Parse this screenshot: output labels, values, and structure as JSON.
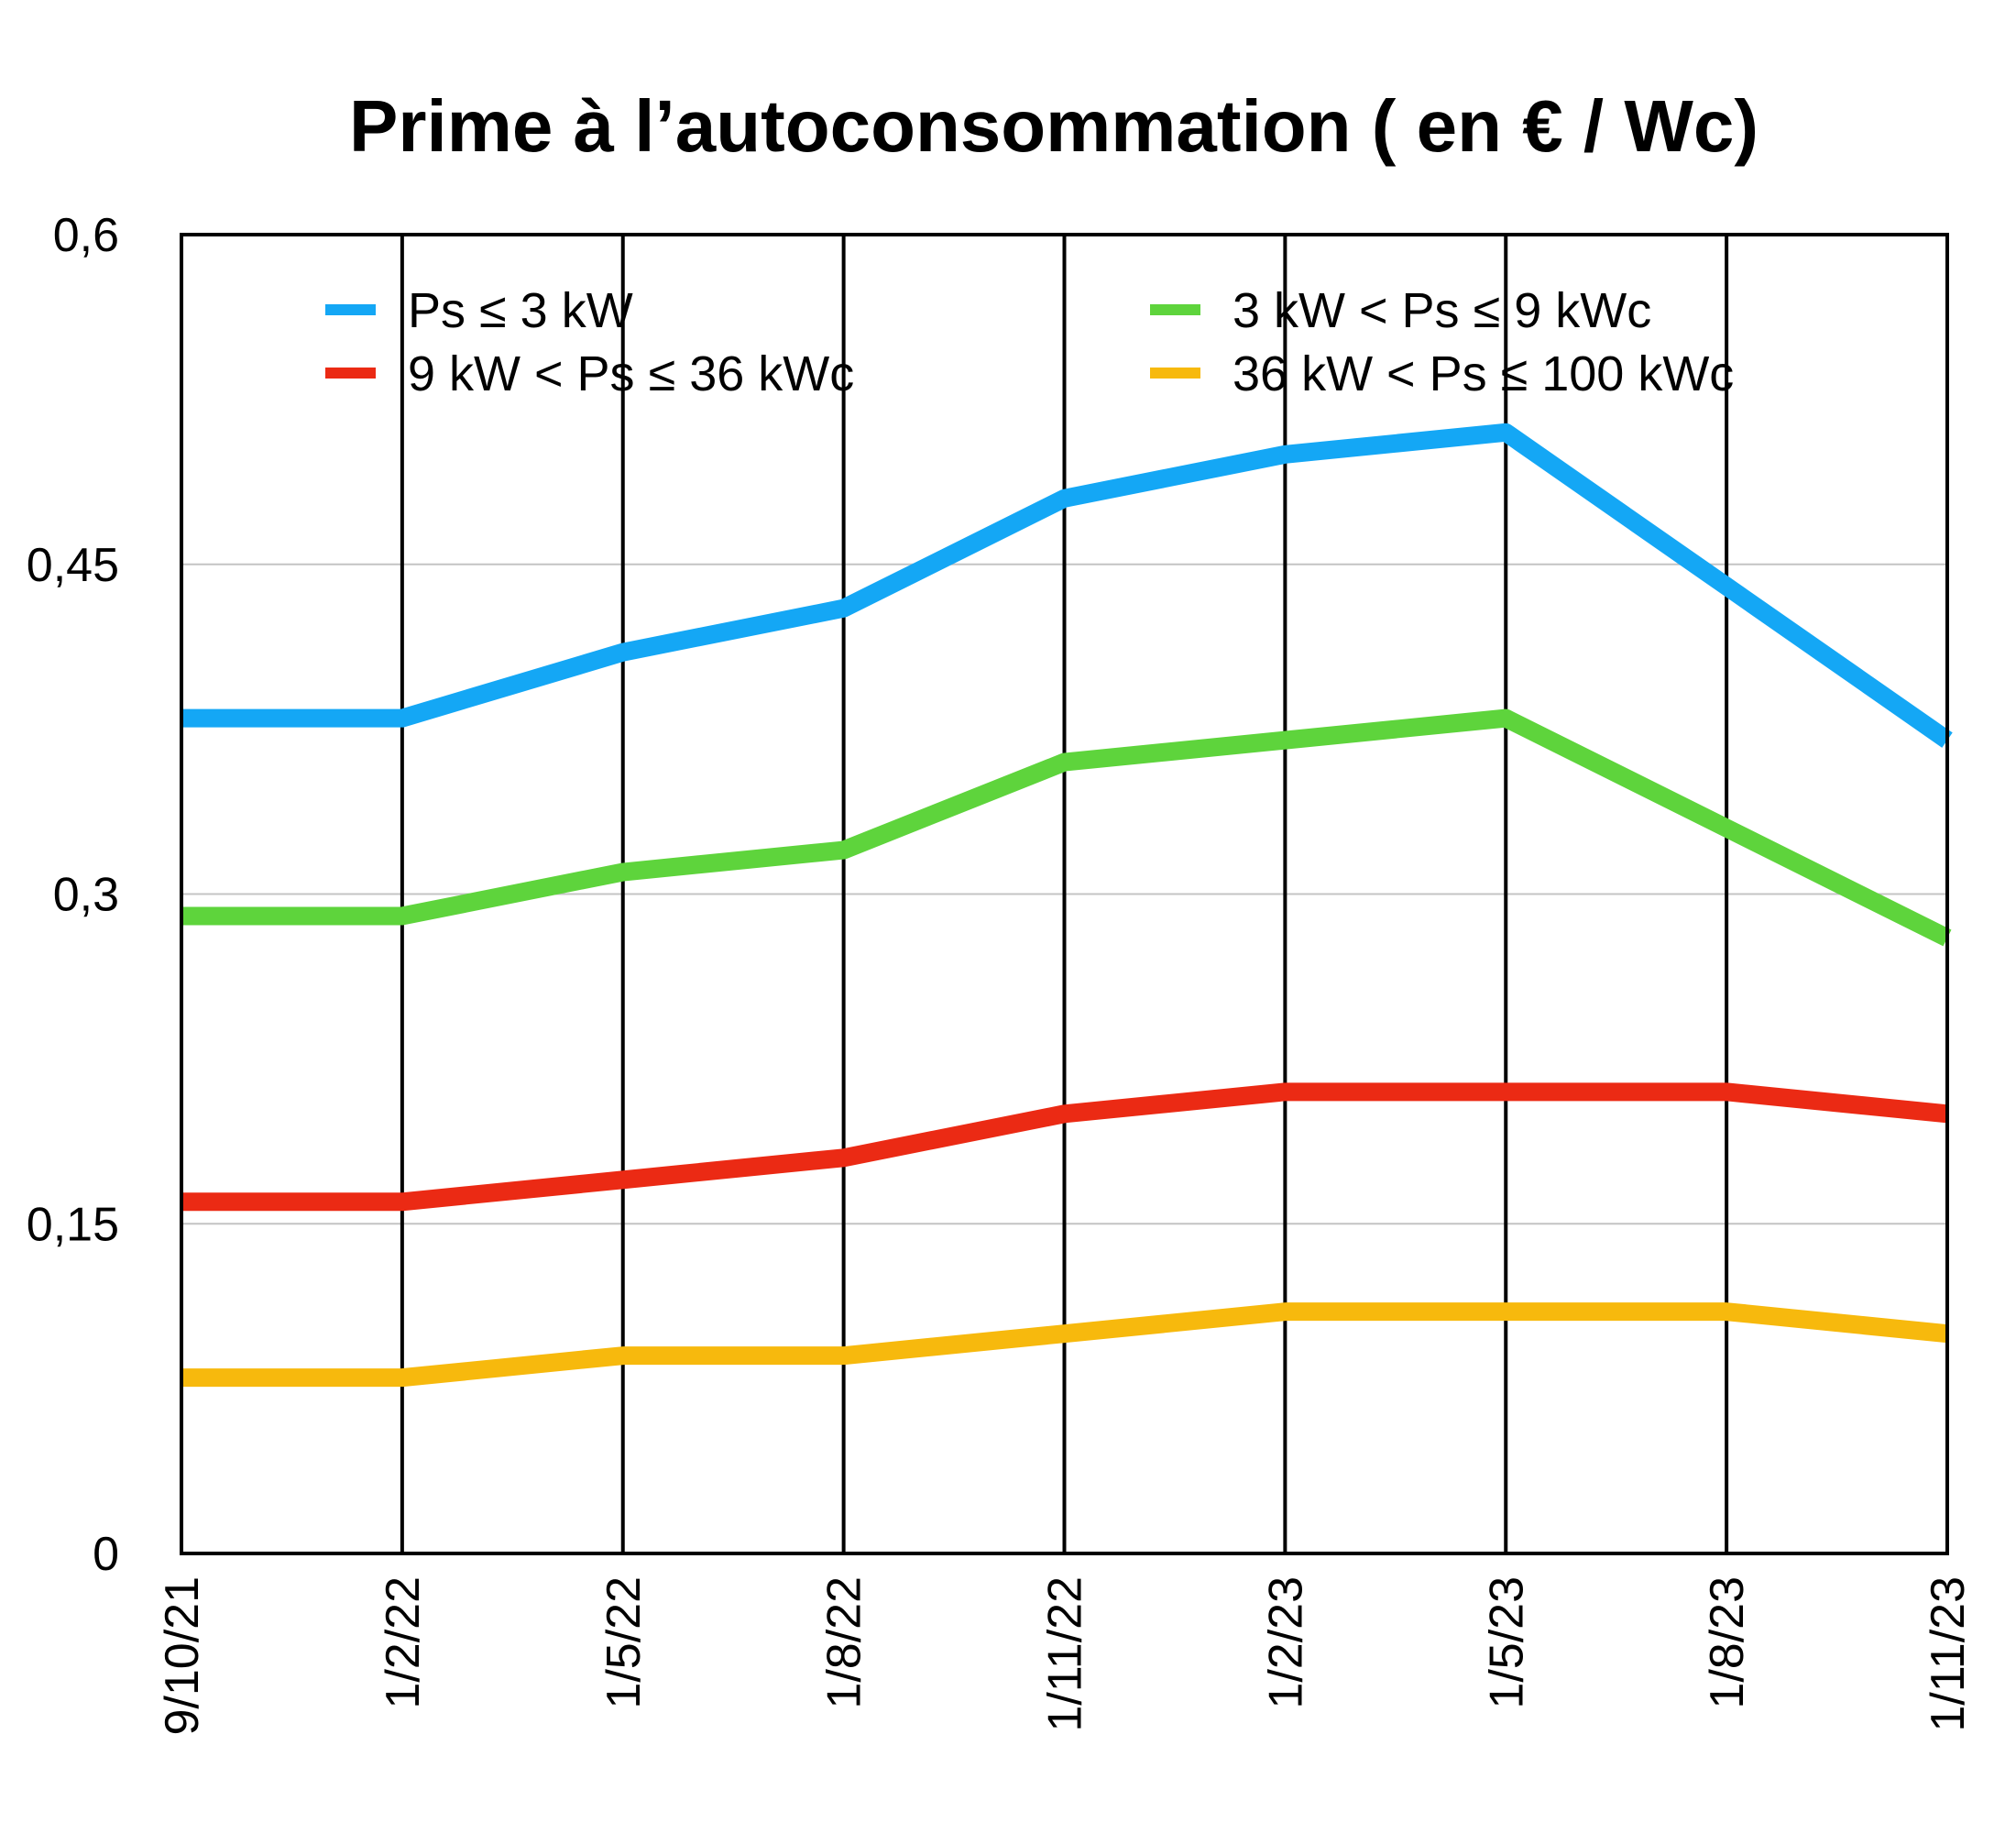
{
  "chart_data": {
    "type": "line",
    "title": "Prime à l’autoconsommation ( en € / Wc)",
    "xlabel": "",
    "ylabel": "",
    "categories": [
      "9/10/21",
      "1/2/22",
      "1/5/22",
      "1/8/22",
      "1/11/22",
      "1/2/23",
      "1/5/23",
      "1/8/23",
      "1/11/23"
    ],
    "ylim": [
      0,
      0.6
    ],
    "y_ticks": [
      0,
      0.15,
      0.3,
      0.45,
      0.6
    ],
    "y_tick_labels": [
      "0",
      "0,15",
      "0,3",
      "0,45",
      "0,6"
    ],
    "grid": true,
    "legend_position": "top",
    "series": [
      {
        "name": "Ps ≤ 3 kW",
        "color": "#14a7f5",
        "values": [
          0.38,
          0.38,
          0.41,
          0.43,
          0.48,
          0.5,
          0.51,
          0.44,
          0.37
        ]
      },
      {
        "name": "3 kW <  Ps  ≤ 9 kWc",
        "color": "#5ed43c",
        "values": [
          0.29,
          0.29,
          0.31,
          0.32,
          0.36,
          0.37,
          0.38,
          0.33,
          0.28
        ]
      },
      {
        "name": "9 kW <  Ps  ≤ 36 kWc",
        "color": "#eb2a14",
        "values": [
          0.16,
          0.16,
          0.17,
          0.18,
          0.2,
          0.21,
          0.21,
          0.21,
          0.2
        ]
      },
      {
        "name": "36 kW <  Ps  ≤ 100 kWc",
        "color": "#f7b90d",
        "values": [
          0.08,
          0.08,
          0.09,
          0.09,
          0.1,
          0.11,
          0.11,
          0.11,
          0.1
        ]
      }
    ]
  }
}
